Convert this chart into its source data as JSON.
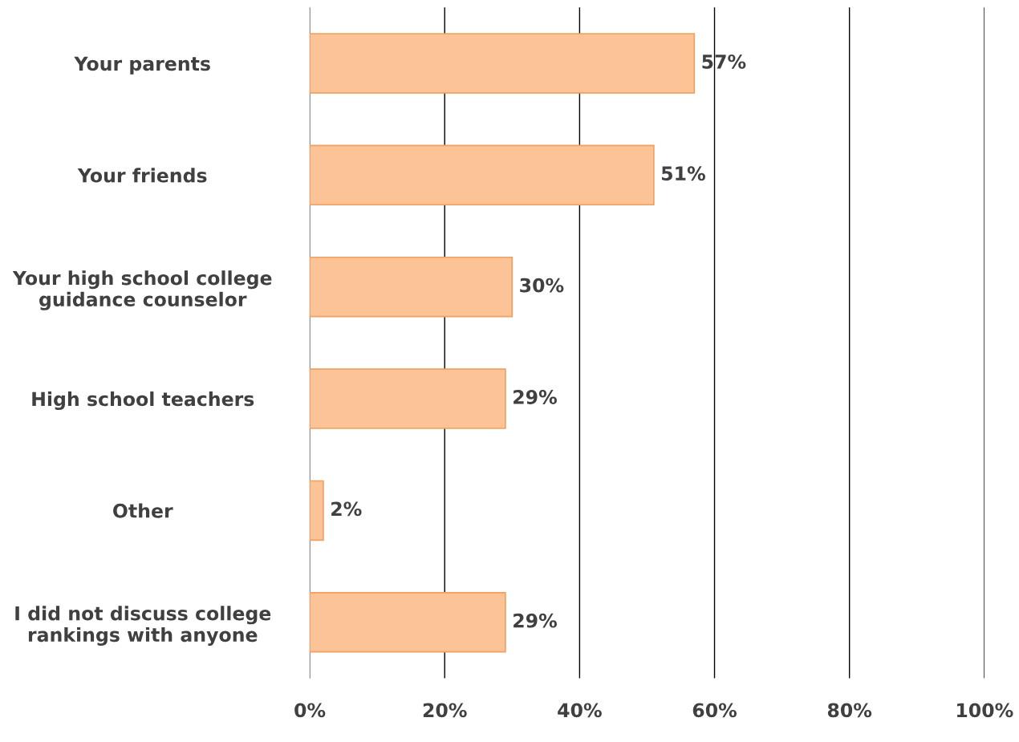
{
  "chart_data": {
    "type": "bar",
    "orientation": "horizontal",
    "categories": [
      "Your parents",
      "Your friends",
      "Your high school college\nguidance counselor",
      "High school teachers",
      "Other",
      "I did not discuss college\nrankings with anyone"
    ],
    "values": [
      57,
      51,
      30,
      29,
      2,
      29
    ],
    "value_labels": [
      "57%",
      "51%",
      "30%",
      "29%",
      "2%",
      "29%"
    ],
    "color": "#fbc396",
    "xlim": [
      0,
      100
    ],
    "xticks": [
      {
        "value": 0,
        "label": "0%"
      },
      {
        "value": 20,
        "label": "20%"
      },
      {
        "value": 40,
        "label": "40%"
      },
      {
        "value": 60,
        "label": "60%"
      },
      {
        "value": 80,
        "label": "80%"
      },
      {
        "value": 100,
        "label": "100%"
      }
    ],
    "grid": "x"
  }
}
